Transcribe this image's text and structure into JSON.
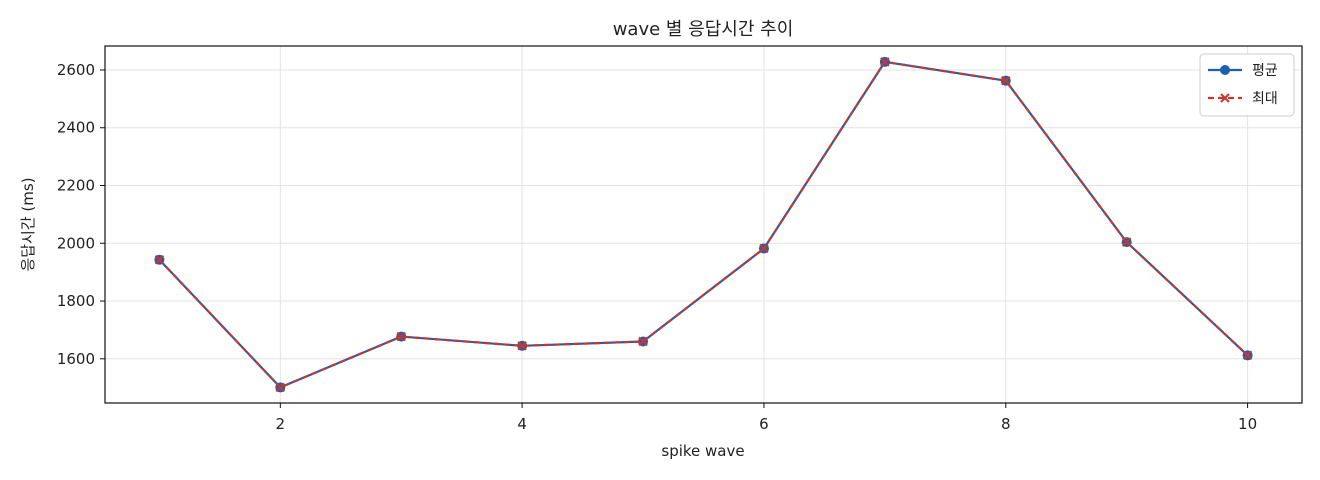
{
  "chart_data": {
    "type": "line",
    "title": "wave 별 응답시간 추이",
    "xlabel": "spike wave",
    "ylabel": "응답시간 (ms)",
    "x": [
      1,
      2,
      3,
      4,
      5,
      6,
      7,
      8,
      9,
      10
    ],
    "xlim": [
      0.55,
      10.45
    ],
    "ylim": [
      1447,
      2683
    ],
    "xticks": [
      2,
      4,
      6,
      8,
      10
    ],
    "yticks": [
      1600,
      1800,
      2000,
      2200,
      2400,
      2600
    ],
    "grid": true,
    "legend_position": "top-right",
    "series": [
      {
        "name": "평균",
        "color": "#1f5fb0",
        "line_style": "solid",
        "marker": "circle",
        "values": [
          1943,
          1501,
          1677,
          1645,
          1660,
          1982,
          2628,
          2563,
          2004,
          1612
        ]
      },
      {
        "name": "최대",
        "color": "#c8372d",
        "line_style": "dashed",
        "marker": "x",
        "values": [
          1943,
          1501,
          1677,
          1645,
          1660,
          1982,
          2628,
          2563,
          2004,
          1612
        ]
      }
    ]
  }
}
